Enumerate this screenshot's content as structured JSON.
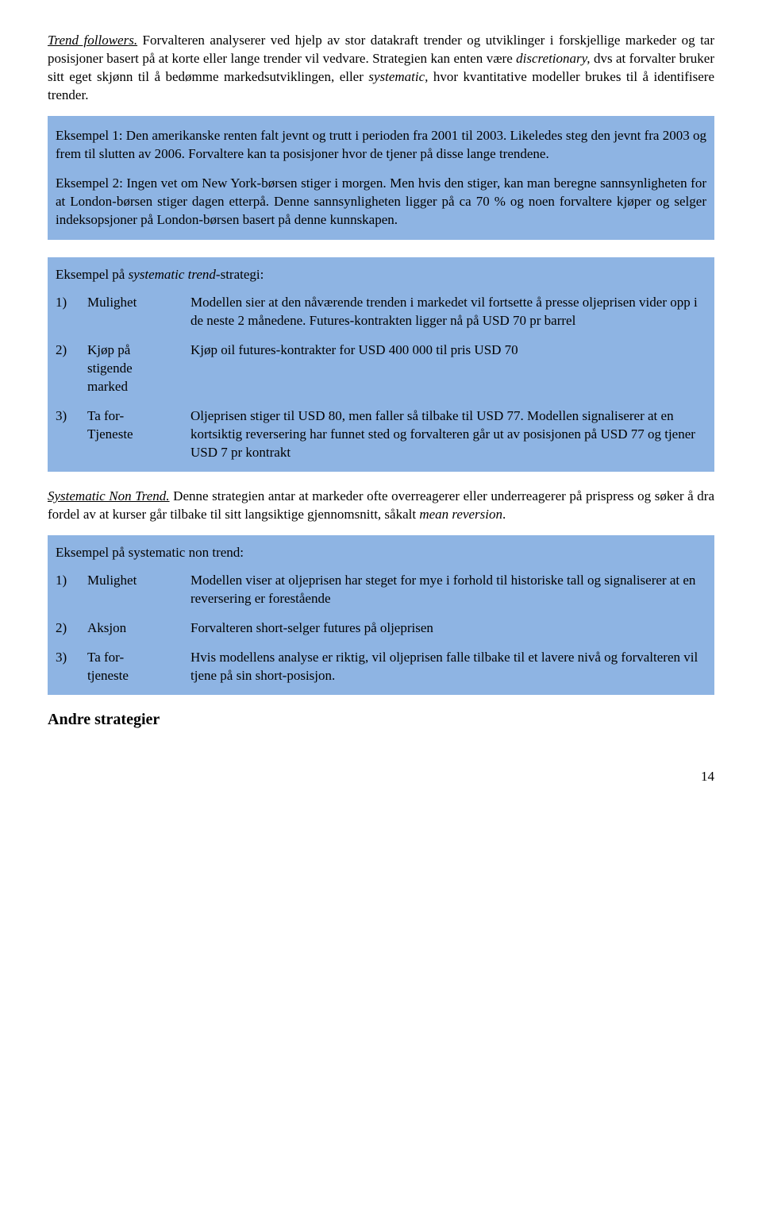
{
  "intro": {
    "lead_phrase": "Trend followers.",
    "text_after": "  Forvalteren analyserer ved hjelp av stor datakraft trender og utviklinger i forskjellige markeder  og tar posisjoner basert på at korte eller lange trender vil vedvare. Strategien kan enten være ",
    "italic1": "discretionary,",
    "mid1": " dvs at forvalter bruker sitt eget skjønn til å bedømme markedsutviklingen, eller ",
    "italic2": "systematic,",
    "mid2": " hvor kvantitative modeller brukes til å identifisere trender."
  },
  "box1": {
    "p1": "Eksempel 1: Den amerikanske renten falt jevnt og trutt i perioden fra 2001 til 2003. Likeledes steg den jevnt fra 2003 og frem til slutten av 2006. Forvaltere kan ta posisjoner hvor de tjener på disse lange trendene.",
    "p2": "Eksempel 2:  Ingen vet om New York-børsen stiger i morgen.  Men hvis den stiger, kan man beregne sannsynligheten for at London-børsen stiger dagen etterpå.  Denne sannsynligheten ligger på ca 70 % og noen forvaltere kjøper og selger indeksopsjoner på London-børsen basert på denne kunnskapen."
  },
  "table1": {
    "title_pre": "Eksempel på ",
    "title_italic": "systematic trend",
    "title_post": "-strategi:",
    "rows": [
      {
        "n": "1)",
        "label": "Mulighet",
        "desc": "Modellen sier at den nåværende trenden i markedet vil fortsette å presse oljeprisen vider opp i de neste 2 månedene. Futures-kontrakten ligger nå på USD 70 pr barrel"
      },
      {
        "n": "2)",
        "label_l1": "Kjøp på",
        "label_l2": "stigende",
        "label_l3": "marked",
        "desc": "Kjøp oil futures-kontrakter for USD 400 000 til pris USD 70"
      },
      {
        "n": "3)",
        "label_l1": "Ta for-",
        "label_l2": "Tjeneste",
        "desc": "Oljeprisen stiger til USD 80, men faller så tilbake til USD 77. Modellen signaliserer at en kortsiktig reversering har funnet sted og forvalteren går ut av posisjonen på USD 77 og tjener USD 7 pr kontrakt"
      }
    ]
  },
  "mid_para": {
    "lead": "Systematic Non Trend.",
    "text": " Denne strategien antar at markeder ofte overreagerer eller underreagerer på prispress og søker å dra fordel av at kurser går tilbake til sitt langsiktige gjennomsnitt, såkalt ",
    "italic_tail": "mean reversion",
    "period": "."
  },
  "table2": {
    "title": "Eksempel på systematic non trend:",
    "rows": [
      {
        "n": "1)",
        "label": "Mulighet",
        "desc": "Modellen viser at oljeprisen har steget for mye i forhold til historiske tall og signaliserer at en reversering er forestående"
      },
      {
        "n": "2)",
        "label": "Aksjon",
        "desc": "Forvalteren short-selger futures på oljeprisen"
      },
      {
        "n": "3)",
        "label_l1": "Ta for-",
        "label_l2": "tjeneste",
        "desc": "Hvis modellens analyse er riktig, vil oljeprisen falle tilbake til et lavere nivå og forvalteren vil tjene på sin short-posisjon."
      }
    ]
  },
  "section_head": "Andre strategier",
  "pagenum": "14",
  "colors": {
    "box_bg": "#8eb4e3",
    "text": "#000000",
    "page_bg": "#ffffff"
  }
}
